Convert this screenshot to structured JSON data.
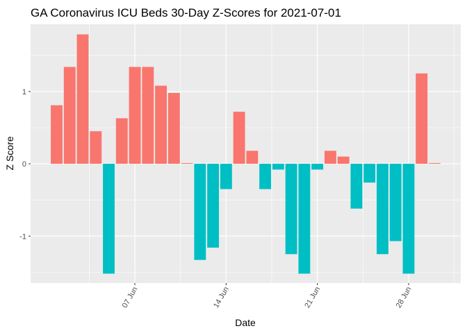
{
  "chart_data": {
    "type": "bar",
    "title": "GA Coronavirus ICU Beds 30-Day Z-Scores for 2021-07-01",
    "xlabel": "Date",
    "ylabel": "Z Score",
    "x_dates": [
      "2021-06-01",
      "2021-06-02",
      "2021-06-03",
      "2021-06-04",
      "2021-06-05",
      "2021-06-06",
      "2021-06-07",
      "2021-06-08",
      "2021-06-09",
      "2021-06-10",
      "2021-06-11",
      "2021-06-12",
      "2021-06-13",
      "2021-06-14",
      "2021-06-15",
      "2021-06-16",
      "2021-06-17",
      "2021-06-18",
      "2021-06-19",
      "2021-06-20",
      "2021-06-21",
      "2021-06-22",
      "2021-06-23",
      "2021-06-24",
      "2021-06-25",
      "2021-06-26",
      "2021-06-27",
      "2021-06-28",
      "2021-06-29",
      "2021-06-30"
    ],
    "values": [
      0.81,
      1.34,
      1.79,
      0.45,
      -1.52,
      0.63,
      1.34,
      1.34,
      1.08,
      0.98,
      0.01,
      -1.33,
      -1.16,
      -0.35,
      0.72,
      0.18,
      -0.35,
      -0.08,
      -1.25,
      -1.52,
      -0.08,
      0.18,
      0.1,
      -0.62,
      -0.26,
      -1.25,
      -1.07,
      -1.52,
      1.25,
      0.01
    ],
    "x_tick_dates": [
      "2021-06-07",
      "2021-06-14",
      "2021-06-21",
      "2021-06-28"
    ],
    "x_tick_labels": [
      "07 Jun",
      "14 Jun",
      "21 Jun",
      "28 Jun"
    ],
    "y_ticks": [
      -1,
      0,
      1
    ],
    "y_tick_labels": [
      "-1",
      "0",
      "1"
    ],
    "ylim": [
      -1.65,
      1.93
    ],
    "xlim": [
      "2021-05-30",
      "2021-07-02"
    ],
    "grid": true,
    "legend": "none",
    "colors": {
      "positive": "#F8766D",
      "negative": "#00BFC4",
      "panel": "#EBEBEB",
      "grid": "#FFFFFF"
    }
  }
}
